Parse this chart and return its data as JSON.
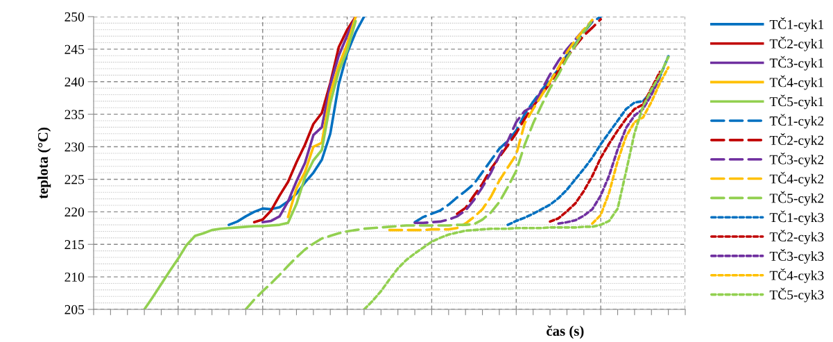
{
  "chart_data": {
    "type": "line",
    "xlabel": "čas (s)",
    "ylabel": "teplota (°C)",
    "categories": [
      null,
      null,
      null,
      null,
      null,
      null,
      null,
      null,
      null,
      null,
      null,
      null,
      null,
      null,
      null,
      null,
      null,
      null,
      null,
      null,
      null,
      null,
      null,
      null,
      null,
      null,
      null,
      null,
      null,
      null,
      null,
      null,
      null,
      null,
      null,
      null,
      null,
      null,
      null,
      null,
      null,
      null,
      null,
      null,
      null,
      null,
      null,
      null,
      null,
      null,
      null,
      null,
      null,
      null,
      null,
      null,
      null,
      null,
      null,
      null,
      null,
      null,
      null,
      null,
      null,
      null,
      null,
      null,
      null,
      null,
      null
    ],
    "ylim": [
      205,
      250
    ],
    "yticks": [
      205,
      210,
      215,
      220,
      225,
      230,
      235,
      240,
      245,
      250
    ],
    "grid": true,
    "legend": "right",
    "tick_labels": "y",
    "series": [
      {
        "name": "TČ1-cyk1",
        "color": "#0070c0",
        "line_style": "solid",
        "values": [
          null,
          null,
          null,
          null,
          null,
          null,
          null,
          null,
          null,
          null,
          null,
          null,
          null,
          null,
          null,
          null,
          218.0,
          218.5,
          219.3,
          220.0,
          220.5,
          220.4,
          220.7,
          221.6,
          222.8,
          224.5,
          226.0,
          228.0,
          232.0,
          239.6,
          244.4,
          247.6,
          250.0,
          null,
          null,
          null,
          null,
          null,
          null,
          null,
          null,
          null,
          null,
          null,
          null,
          null,
          null,
          null,
          null,
          null,
          null,
          null,
          null,
          null,
          null,
          null,
          null,
          null,
          null,
          null,
          null,
          null,
          null,
          null,
          null,
          null,
          null,
          null,
          null,
          null,
          null
        ]
      },
      {
        "name": "TČ2-cyk1",
        "color": "#c00000",
        "line_style": "solid",
        "values": [
          null,
          null,
          null,
          null,
          null,
          null,
          null,
          null,
          null,
          null,
          null,
          null,
          null,
          null,
          null,
          null,
          null,
          null,
          null,
          218.4,
          218.8,
          220.2,
          222.5,
          224.6,
          227.6,
          230.3,
          233.5,
          235.2,
          239.8,
          245.3,
          248.0,
          250.0,
          null,
          null,
          null,
          null,
          null,
          null,
          null,
          null,
          null,
          null,
          null,
          null,
          null,
          null,
          null,
          null,
          null,
          null,
          null,
          null,
          null,
          null,
          null,
          null,
          null,
          null,
          null,
          null,
          null,
          null,
          null,
          null,
          null,
          null,
          null,
          null,
          null,
          null,
          null
        ]
      },
      {
        "name": "TČ3-cyk1",
        "color": "#7030a0",
        "line_style": "solid",
        "values": [
          null,
          null,
          null,
          null,
          null,
          null,
          null,
          null,
          null,
          null,
          null,
          null,
          null,
          null,
          null,
          null,
          null,
          null,
          null,
          null,
          218.4,
          218.6,
          219.3,
          221.6,
          224.7,
          227.5,
          231.8,
          233.0,
          239.5,
          244.0,
          247.1,
          250.0,
          null,
          null,
          null,
          null,
          null,
          null,
          null,
          null,
          null,
          null,
          null,
          null,
          null,
          null,
          null,
          null,
          null,
          null,
          null,
          null,
          null,
          null,
          null,
          null,
          null,
          null,
          null,
          null,
          null,
          null,
          null,
          null,
          null,
          null,
          null,
          null,
          null,
          null,
          null
        ]
      },
      {
        "name": "TČ4-cyk1",
        "color": "#ffc000",
        "line_style": "solid",
        "values": [
          null,
          null,
          null,
          null,
          null,
          null,
          null,
          null,
          null,
          null,
          null,
          null,
          null,
          null,
          null,
          null,
          null,
          null,
          null,
          null,
          null,
          null,
          null,
          219.2,
          223.6,
          226.1,
          230.0,
          230.6,
          238.2,
          242.5,
          245.8,
          250.0,
          null,
          null,
          null,
          null,
          null,
          null,
          null,
          null,
          null,
          null,
          null,
          null,
          null,
          null,
          null,
          null,
          null,
          null,
          null,
          null,
          null,
          null,
          null,
          null,
          null,
          null,
          null,
          null,
          null,
          null,
          null,
          null,
          null,
          null,
          null,
          null,
          null,
          null,
          null
        ]
      },
      {
        "name": "TČ5-cyk1",
        "color": "#92d050",
        "line_style": "solid",
        "values": [
          null,
          null,
          null,
          null,
          null,
          null,
          205.0,
          206.9,
          208.9,
          210.9,
          212.8,
          214.9,
          216.3,
          216.7,
          217.2,
          217.4,
          217.5,
          217.6,
          217.7,
          217.8,
          217.8,
          217.9,
          218.0,
          218.3,
          221.2,
          225.3,
          227.9,
          229.5,
          236.7,
          241.6,
          244.8,
          249.3,
          null,
          null,
          null,
          null,
          null,
          null,
          null,
          null,
          null,
          null,
          null,
          null,
          null,
          null,
          null,
          null,
          null,
          null,
          null,
          null,
          null,
          null,
          null,
          null,
          null,
          null,
          null,
          null,
          null,
          null,
          null,
          null,
          null,
          null,
          null,
          null,
          null,
          null,
          null
        ]
      },
      {
        "name": "TČ1-cyk2",
        "color": "#0070c0",
        "line_style": "dashed",
        "values": [
          null,
          null,
          null,
          null,
          null,
          null,
          null,
          null,
          null,
          null,
          null,
          null,
          null,
          null,
          null,
          null,
          null,
          null,
          null,
          null,
          null,
          null,
          null,
          null,
          null,
          null,
          null,
          null,
          null,
          null,
          null,
          null,
          null,
          null,
          null,
          null,
          null,
          null,
          218.4,
          219.2,
          219.7,
          220.2,
          221.1,
          222.2,
          223.2,
          224.3,
          226.1,
          227.9,
          229.7,
          230.9,
          232.5,
          235.0,
          236.9,
          238.7,
          240.3,
          241.9,
          244.1,
          245.8,
          247.6,
          249.2,
          250.0,
          null,
          null,
          null,
          null,
          null,
          null,
          null,
          null,
          null,
          null
        ]
      },
      {
        "name": "TČ2-cyk2",
        "color": "#c00000",
        "line_style": "dashed",
        "values": [
          null,
          null,
          null,
          null,
          null,
          null,
          null,
          null,
          null,
          null,
          null,
          null,
          null,
          null,
          null,
          null,
          null,
          null,
          null,
          null,
          null,
          null,
          null,
          null,
          null,
          null,
          null,
          null,
          null,
          null,
          null,
          null,
          null,
          null,
          null,
          null,
          null,
          null,
          null,
          null,
          null,
          null,
          null,
          219.7,
          220.6,
          222.5,
          224.3,
          226.6,
          228.4,
          230.2,
          232.1,
          234.3,
          236.2,
          238.0,
          239.8,
          241.7,
          243.7,
          245.5,
          247.1,
          248.3,
          249.6,
          null,
          null,
          null,
          null,
          null,
          null,
          null,
          null,
          null,
          null
        ]
      },
      {
        "name": "TČ3-cyk2",
        "color": "#7030a0",
        "line_style": "dashed",
        "values": [
          null,
          null,
          null,
          null,
          null,
          null,
          null,
          null,
          null,
          null,
          null,
          null,
          null,
          null,
          null,
          null,
          null,
          null,
          null,
          null,
          null,
          null,
          null,
          null,
          null,
          null,
          null,
          null,
          null,
          null,
          null,
          null,
          null,
          null,
          null,
          null,
          null,
          null,
          218.3,
          218.3,
          218.4,
          218.5,
          218.8,
          219.3,
          220.2,
          221.8,
          223.8,
          226.0,
          228.6,
          230.9,
          233.8,
          235.5,
          236.2,
          238.7,
          241.1,
          243.2,
          245.0,
          246.5,
          248.0,
          249.3,
          null,
          null,
          null,
          null,
          null,
          null,
          null,
          null,
          null,
          null,
          null
        ]
      },
      {
        "name": "TČ4-cyk2",
        "color": "#ffc000",
        "line_style": "dashed",
        "values": [
          null,
          null,
          null,
          null,
          null,
          null,
          null,
          null,
          null,
          null,
          null,
          null,
          null,
          null,
          null,
          null,
          null,
          null,
          null,
          null,
          null,
          null,
          null,
          null,
          null,
          null,
          null,
          null,
          null,
          null,
          null,
          null,
          null,
          null,
          null,
          217.2,
          217.2,
          217.2,
          217.2,
          217.2,
          217.3,
          217.3,
          217.3,
          217.5,
          218.2,
          219.2,
          220.4,
          222.3,
          224.8,
          226.8,
          228.8,
          233.6,
          235.8,
          237.9,
          240.0,
          242.2,
          244.5,
          246.4,
          248.0,
          249.5,
          null,
          null,
          null,
          null,
          null,
          null,
          null,
          null,
          null,
          null,
          null
        ]
      },
      {
        "name": "TČ5-cyk2",
        "color": "#92d050",
        "line_style": "dashed",
        "values": [
          null,
          null,
          null,
          null,
          null,
          null,
          null,
          null,
          null,
          null,
          null,
          null,
          null,
          null,
          null,
          null,
          null,
          null,
          205.0,
          206.5,
          207.8,
          209.0,
          210.3,
          211.7,
          213.0,
          214.2,
          215.1,
          215.9,
          216.3,
          216.7,
          217.0,
          217.2,
          217.4,
          217.5,
          217.6,
          217.7,
          217.8,
          217.9,
          217.9,
          217.9,
          217.9,
          217.9,
          217.9,
          218.0,
          218.0,
          218.1,
          218.8,
          219.9,
          221.5,
          223.8,
          226.3,
          230.3,
          233.6,
          236.4,
          239.0,
          241.1,
          243.6,
          245.6,
          247.7,
          249.4,
          null,
          null,
          null,
          null,
          null,
          null,
          null,
          null,
          null,
          null,
          null
        ]
      },
      {
        "name": "TČ1-cyk3",
        "color": "#0070c0",
        "line_style": "dotted",
        "values": [
          null,
          null,
          null,
          null,
          null,
          null,
          null,
          null,
          null,
          null,
          null,
          null,
          null,
          null,
          null,
          null,
          null,
          null,
          null,
          null,
          null,
          null,
          null,
          null,
          null,
          null,
          null,
          null,
          null,
          null,
          null,
          null,
          null,
          null,
          null,
          null,
          null,
          null,
          null,
          null,
          null,
          null,
          null,
          null,
          null,
          null,
          null,
          null,
          null,
          218.0,
          218.6,
          219.1,
          219.7,
          220.4,
          221.1,
          222.1,
          223.4,
          225.0,
          226.6,
          228.3,
          230.4,
          232.2,
          234.0,
          235.8,
          236.8,
          237.0,
          238.5,
          240.8,
          243.9,
          null,
          null
        ]
      },
      {
        "name": "TČ2-cyk3",
        "color": "#c00000",
        "line_style": "dotted",
        "values": [
          null,
          null,
          null,
          null,
          null,
          null,
          null,
          null,
          null,
          null,
          null,
          null,
          null,
          null,
          null,
          null,
          null,
          null,
          null,
          null,
          null,
          null,
          null,
          null,
          null,
          null,
          null,
          null,
          null,
          null,
          null,
          null,
          null,
          null,
          null,
          null,
          null,
          null,
          null,
          null,
          null,
          null,
          null,
          null,
          null,
          null,
          null,
          null,
          null,
          null,
          null,
          null,
          null,
          null,
          218.5,
          219.0,
          220.1,
          221.3,
          223.2,
          225.5,
          228.3,
          230.5,
          232.5,
          234.3,
          235.8,
          236.5,
          239.0,
          241.5,
          null,
          null,
          null
        ]
      },
      {
        "name": "TČ3-cyk3",
        "color": "#7030a0",
        "line_style": "dotted",
        "values": [
          null,
          null,
          null,
          null,
          null,
          null,
          null,
          null,
          null,
          null,
          null,
          null,
          null,
          null,
          null,
          null,
          null,
          null,
          null,
          null,
          null,
          null,
          null,
          null,
          null,
          null,
          null,
          null,
          null,
          null,
          null,
          null,
          null,
          null,
          null,
          null,
          null,
          null,
          null,
          null,
          null,
          null,
          null,
          null,
          null,
          null,
          null,
          null,
          null,
          null,
          null,
          null,
          null,
          null,
          null,
          218.2,
          218.4,
          218.7,
          219.4,
          220.4,
          222.5,
          225.6,
          229.6,
          232.9,
          234.8,
          235.8,
          238.0,
          240.7,
          null,
          null,
          null
        ]
      },
      {
        "name": "TČ4-cyk3",
        "color": "#ffc000",
        "line_style": "dotted",
        "values": [
          null,
          null,
          null,
          null,
          null,
          null,
          null,
          null,
          null,
          null,
          null,
          null,
          null,
          null,
          null,
          null,
          null,
          null,
          null,
          null,
          null,
          null,
          null,
          null,
          null,
          null,
          null,
          null,
          null,
          null,
          null,
          null,
          null,
          null,
          null,
          null,
          null,
          null,
          null,
          null,
          null,
          null,
          null,
          null,
          null,
          null,
          null,
          null,
          null,
          null,
          null,
          null,
          null,
          null,
          null,
          null,
          null,
          null,
          null,
          218.2,
          219.5,
          223.0,
          227.8,
          231.6,
          233.8,
          234.5,
          236.9,
          239.8,
          242.2,
          null,
          null
        ]
      },
      {
        "name": "TČ5-cyk3",
        "color": "#92d050",
        "line_style": "dotted",
        "values": [
          null,
          null,
          null,
          null,
          null,
          null,
          null,
          null,
          null,
          null,
          null,
          null,
          null,
          null,
          null,
          null,
          null,
          null,
          null,
          null,
          null,
          null,
          null,
          null,
          null,
          null,
          null,
          null,
          null,
          null,
          null,
          null,
          205.0,
          206.3,
          207.8,
          209.6,
          211.3,
          212.6,
          213.6,
          214.5,
          215.4,
          216.0,
          216.5,
          216.8,
          217.1,
          217.2,
          217.3,
          217.4,
          217.4,
          217.4,
          217.5,
          217.5,
          217.5,
          217.5,
          217.6,
          217.6,
          217.6,
          217.6,
          217.7,
          217.7,
          218.0,
          218.6,
          220.5,
          226.2,
          232.1,
          236.2,
          238.8,
          241.0,
          243.8,
          null,
          null
        ]
      }
    ]
  }
}
